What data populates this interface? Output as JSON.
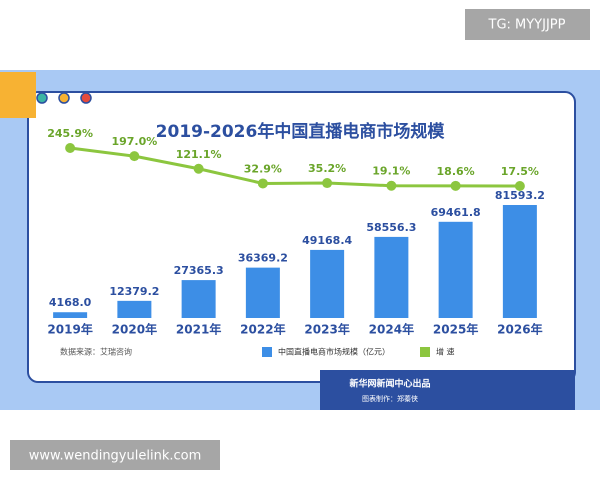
{
  "watermark_top": "TG: MYYJJPP",
  "watermark_bottom": "www.wendingyulelink.com",
  "chart_data": {
    "type": "bar-line",
    "title": "2019-2026年中国直播电商市场规模",
    "categories": [
      "2019年",
      "2020年",
      "2021年",
      "2022年",
      "2023年",
      "2024年",
      "2025年",
      "2026年"
    ],
    "series": [
      {
        "name": "中国直播电商市场规模（亿元）",
        "color": "#3d8ee6",
        "values": [
          4168.0,
          12379.2,
          27365.3,
          36369.2,
          49168.4,
          58556.3,
          69461.8,
          81593.2
        ],
        "value_labels": [
          "4168.0",
          "12379.2",
          "27365.3",
          "36369.2",
          "49168.4",
          "58556.3",
          "69461.8",
          "81593.2"
        ]
      },
      {
        "name": "增 速",
        "color": "#8cc63f",
        "values": [
          245.9,
          197.0,
          121.1,
          32.9,
          35.2,
          19.1,
          18.6,
          17.5
        ],
        "value_labels": [
          "245.9%",
          "197.0%",
          "121.1%",
          "32.9%",
          "35.2%",
          "19.1%",
          "18.6%",
          "17.5%"
        ]
      }
    ],
    "source": "数据来源：艾瑞咨询",
    "producer": "新华网新闻中心出品",
    "designer": "图表制作：郑蓁侠"
  }
}
